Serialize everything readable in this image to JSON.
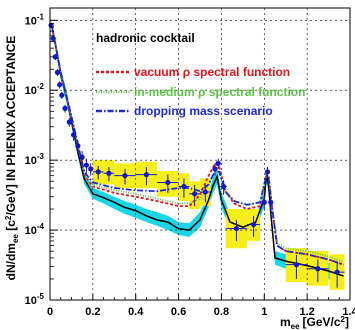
{
  "chart_data": {
    "type": "line",
    "title": "",
    "xlabel": "m",
    "xlabel_sub": "ee",
    "xlabel_unit": "[GeV/c",
    "xlabel_unit_sup": "2",
    "xlabel_unit_close": "]",
    "ylabel": "dN/dm",
    "ylabel_sub": "ee",
    "ylabel_mid": " [c",
    "ylabel_sup": "2",
    "ylabel_tail": "/GeV] IN PHENIX ACCEPTANCE",
    "xlim": [
      0,
      1.4
    ],
    "ylim": [
      1e-05,
      0.15
    ],
    "yscale": "log",
    "grid": true,
    "x_ticks": [
      "0",
      "0.2",
      "0.4",
      "0.6",
      "0.8",
      "1",
      "1.2",
      "1.4"
    ],
    "y_ticks": [
      {
        "base": "10",
        "exp": "-5"
      },
      {
        "base": "10",
        "exp": "-4"
      },
      {
        "base": "10",
        "exp": "-3"
      },
      {
        "base": "10",
        "exp": "-2"
      },
      {
        "base": "10",
        "exp": "-1"
      }
    ],
    "legend": {
      "position": "top-right",
      "header": "hadronic cocktail",
      "entries": [
        {
          "pre": "vacuum ",
          "greek": "ρ",
          "post": " spectral function",
          "color": "#e8141c",
          "dash": "3,2"
        },
        {
          "pre": "in-medium ",
          "greek": "ρ",
          "post": " spectral function",
          "color": "#5cc245",
          "dash": "1,1.5"
        },
        {
          "pre": "dropping mass scenario",
          "greek": "",
          "post": "",
          "color": "#1c2ad8",
          "dash": "6,2,1.5,2"
        }
      ]
    },
    "cocktail_band": {
      "color": "#19d6e6",
      "x": [
        0.01,
        0.03,
        0.05,
        0.08,
        0.1,
        0.13,
        0.16,
        0.2,
        0.25,
        0.3,
        0.35,
        0.4,
        0.45,
        0.5,
        0.55,
        0.6,
        0.65,
        0.7,
        0.74,
        0.76,
        0.78,
        0.8,
        0.84,
        0.9,
        0.96,
        1.0,
        1.01,
        1.02,
        1.03,
        1.05,
        1.1,
        1.2,
        1.3,
        1.37
      ],
      "upper": [
        0.09,
        0.045,
        0.021,
        0.009,
        0.0045,
        0.0016,
        0.00065,
        0.0004,
        0.00035,
        0.0003,
        0.00026,
        0.00023,
        0.0002,
        0.00018,
        0.00016,
        0.00013,
        0.000125,
        0.00018,
        0.00034,
        0.00055,
        0.00075,
        0.00035,
        0.00017,
        0.00014,
        0.00016,
        0.00035,
        0.00075,
        0.00055,
        0.00022,
        5e-05,
        4.5e-05,
        4e-05,
        3.4e-05,
        2.8e-05
      ],
      "lower": [
        0.07,
        0.032,
        0.014,
        0.006,
        0.003,
        0.0011,
        0.00045,
        0.00028,
        0.00024,
        0.0002,
        0.00017,
        0.00015,
        0.00013,
        0.000115,
        0.0001,
        8.5e-05,
        8e-05,
        0.00011,
        0.00021,
        0.00033,
        0.00045,
        0.00021,
        0.0001,
        8.5e-05,
        0.0001,
        0.00022,
        0.00048,
        0.00035,
        0.00014,
        3.2e-05,
        2.8e-05,
        2.4e-05,
        2e-05,
        1.7e-05
      ]
    },
    "cocktail_line": {
      "color": "#000000",
      "x": [
        0.01,
        0.03,
        0.05,
        0.08,
        0.1,
        0.13,
        0.16,
        0.2,
        0.25,
        0.3,
        0.35,
        0.4,
        0.45,
        0.5,
        0.55,
        0.6,
        0.65,
        0.7,
        0.74,
        0.76,
        0.78,
        0.8,
        0.84,
        0.9,
        0.96,
        1.0,
        1.01,
        1.02,
        1.03,
        1.05,
        1.1,
        1.2,
        1.3,
        1.37
      ],
      "y": [
        0.08,
        0.038,
        0.017,
        0.0073,
        0.0037,
        0.0013,
        0.00054,
        0.00033,
        0.00029,
        0.00025,
        0.00021,
        0.00019,
        0.00016,
        0.00014,
        0.00013,
        0.000105,
        0.0001,
        0.00014,
        0.00027,
        0.00043,
        0.00058,
        0.00027,
        0.00013,
        0.00011,
        0.00013,
        0.00028,
        0.0006,
        0.00044,
        0.00018,
        4e-05,
        3.6e-05,
        3.1e-05,
        2.6e-05,
        2.2e-05
      ]
    },
    "series": [
      {
        "name": "vacuum ρ spectral function",
        "color": "#e8141c",
        "x": [
          0.01,
          0.05,
          0.1,
          0.16,
          0.2,
          0.3,
          0.4,
          0.5,
          0.6,
          0.65,
          0.7,
          0.74,
          0.77,
          0.79,
          0.82,
          0.86,
          0.92,
          0.98,
          1.01,
          1.02,
          1.04,
          1.06,
          1.1,
          1.2,
          1.3,
          1.37
        ],
        "y": [
          0.08,
          0.018,
          0.004,
          0.00062,
          0.00042,
          0.00034,
          0.0003,
          0.00026,
          0.00022,
          0.00022,
          0.00032,
          0.0006,
          0.0009,
          0.0008,
          0.00035,
          0.00024,
          0.0002,
          0.00022,
          0.00065,
          0.0006,
          0.00016,
          6e-05,
          5e-05,
          4.5e-05,
          3.8e-05,
          3.2e-05
        ]
      },
      {
        "name": "in-medium ρ spectral function",
        "color": "#5cc245",
        "x": [
          0.01,
          0.05,
          0.1,
          0.16,
          0.2,
          0.3,
          0.4,
          0.5,
          0.6,
          0.65,
          0.7,
          0.74,
          0.77,
          0.79,
          0.82,
          0.86,
          0.92,
          0.98,
          1.01,
          1.02,
          1.04,
          1.06,
          1.1,
          1.2,
          1.3,
          1.37
        ],
        "y": [
          0.08,
          0.018,
          0.0042,
          0.00065,
          0.00045,
          0.00037,
          0.00033,
          0.00028,
          0.00024,
          0.00024,
          0.00028,
          0.00045,
          0.0007,
          0.00065,
          0.00034,
          0.00026,
          0.00023,
          0.00025,
          0.00062,
          0.00058,
          0.00018,
          6.5e-05,
          5.5e-05,
          5e-05,
          4.2e-05,
          3.5e-05
        ]
      },
      {
        "name": "dropping mass scenario",
        "color": "#1c2ad8",
        "x": [
          0.01,
          0.05,
          0.1,
          0.16,
          0.2,
          0.3,
          0.4,
          0.5,
          0.55,
          0.6,
          0.65,
          0.7,
          0.74,
          0.77,
          0.79,
          0.82,
          0.86,
          0.92,
          0.98,
          1.01,
          1.02,
          1.04,
          1.06,
          1.1,
          1.2,
          1.3,
          1.37
        ],
        "y": [
          0.08,
          0.018,
          0.0043,
          0.00068,
          0.00048,
          0.0004,
          0.00037,
          0.00036,
          0.00038,
          0.0004,
          0.0004,
          0.00036,
          0.00045,
          0.0007,
          0.00068,
          0.00035,
          0.00026,
          0.00023,
          0.00025,
          0.0006,
          0.00055,
          0.00017,
          6e-05,
          5e-05,
          4.5e-05,
          3.8e-05,
          3.2e-05
        ]
      }
    ],
    "data_points": {
      "color": "#1418c8",
      "points": [
        {
          "x": 0.005,
          "y": 0.085,
          "yerr": 0.006,
          "xerr": 0.005
        },
        {
          "x": 0.015,
          "y": 0.055,
          "yerr": 0.004,
          "xerr": 0.005
        },
        {
          "x": 0.025,
          "y": 0.03,
          "yerr": 0.003,
          "xerr": 0.005
        },
        {
          "x": 0.035,
          "y": 0.018,
          "yerr": 0.002,
          "xerr": 0.005
        },
        {
          "x": 0.045,
          "y": 0.012,
          "yerr": 0.0014,
          "xerr": 0.005
        },
        {
          "x": 0.055,
          "y": 0.0085,
          "yerr": 0.001,
          "xerr": 0.005
        },
        {
          "x": 0.07,
          "y": 0.0055,
          "yerr": 0.0007,
          "xerr": 0.01
        },
        {
          "x": 0.09,
          "y": 0.0035,
          "yerr": 0.0005,
          "xerr": 0.01
        },
        {
          "x": 0.11,
          "y": 0.0023,
          "yerr": 0.0004,
          "xerr": 0.01
        },
        {
          "x": 0.13,
          "y": 0.0016,
          "yerr": 0.0003,
          "xerr": 0.01
        },
        {
          "x": 0.15,
          "y": 0.0011,
          "yerr": 0.00025,
          "xerr": 0.01
        },
        {
          "x": 0.17,
          "y": 0.00085,
          "yerr": 0.0002,
          "xerr": 0.01
        },
        {
          "x": 0.19,
          "y": 0.00075,
          "yerr": 0.00015,
          "xerr": 0.01
        },
        {
          "x": 0.225,
          "y": 0.00068,
          "yerr": 0.00015,
          "xerr": 0.025,
          "sys": [
            0.00045,
            0.001
          ]
        },
        {
          "x": 0.275,
          "y": 0.00065,
          "yerr": 0.00015,
          "xerr": 0.025,
          "sys": [
            0.00045,
            0.001
          ]
        },
        {
          "x": 0.35,
          "y": 0.0006,
          "yerr": 0.00015,
          "xerr": 0.05,
          "sys": [
            0.0004,
            0.0009
          ]
        },
        {
          "x": 0.45,
          "y": 0.00062,
          "yerr": 0.00018,
          "xerr": 0.05,
          "sys": [
            0.0004,
            0.00095
          ]
        },
        {
          "x": 0.55,
          "y": 0.00048,
          "yerr": 0.00014,
          "xerr": 0.05,
          "sys": [
            0.0003,
            0.0007
          ]
        },
        {
          "x": 0.625,
          "y": 0.00042,
          "yerr": 0.00013,
          "xerr": 0.025,
          "sys": [
            0.00026,
            0.00065
          ]
        },
        {
          "x": 0.675,
          "y": 0.00033,
          "yerr": 0.00011,
          "xerr": 0.025,
          "sys": [
            0.0002,
            0.0005
          ]
        },
        {
          "x": 0.725,
          "y": 0.00035,
          "yerr": 0.0001,
          "xerr": 0.025,
          "sys": [
            0.00022,
            0.00055
          ]
        },
        {
          "x": 0.77,
          "y": 0.00075,
          "yerr": 0.00015,
          "xerr": 0.01
        },
        {
          "x": 0.785,
          "y": 0.0009,
          "yerr": 0.00015,
          "xerr": 0.01
        },
        {
          "x": 0.81,
          "y": 0.00042,
          "yerr": 0.0001,
          "xerr": 0.015
        },
        {
          "x": 0.87,
          "y": 0.000105,
          "yerr": 3.5e-05,
          "xerr": 0.05,
          "sys": [
            5.5e-05,
            0.0002
          ]
        },
        {
          "x": 0.95,
          "y": 0.00012,
          "yerr": 4e-05,
          "xerr": 0.03,
          "sys": [
            7e-05,
            0.0002
          ]
        },
        {
          "x": 1.0,
          "y": 0.00025,
          "yerr": 6e-05,
          "xerr": 0.01
        },
        {
          "x": 1.015,
          "y": 0.00068,
          "yerr": 0.00012,
          "xerr": 0.008
        },
        {
          "x": 1.03,
          "y": 0.00025,
          "yerr": 6e-05,
          "xerr": 0.01
        },
        {
          "x": 1.15,
          "y": 3.2e-05,
          "yerr": 1.2e-05,
          "xerr": 0.05,
          "sys": [
            1.8e-05,
            5.5e-05
          ]
        },
        {
          "x": 1.25,
          "y": 2.8e-05,
          "yerr": 1e-05,
          "xerr": 0.05,
          "sys": [
            1.6e-05,
            5e-05
          ]
        },
        {
          "x": 1.34,
          "y": 2.5e-05,
          "yerr": 1e-05,
          "xerr": 0.035,
          "sys": [
            1.4e-05,
            4.5e-05
          ]
        }
      ]
    }
  }
}
